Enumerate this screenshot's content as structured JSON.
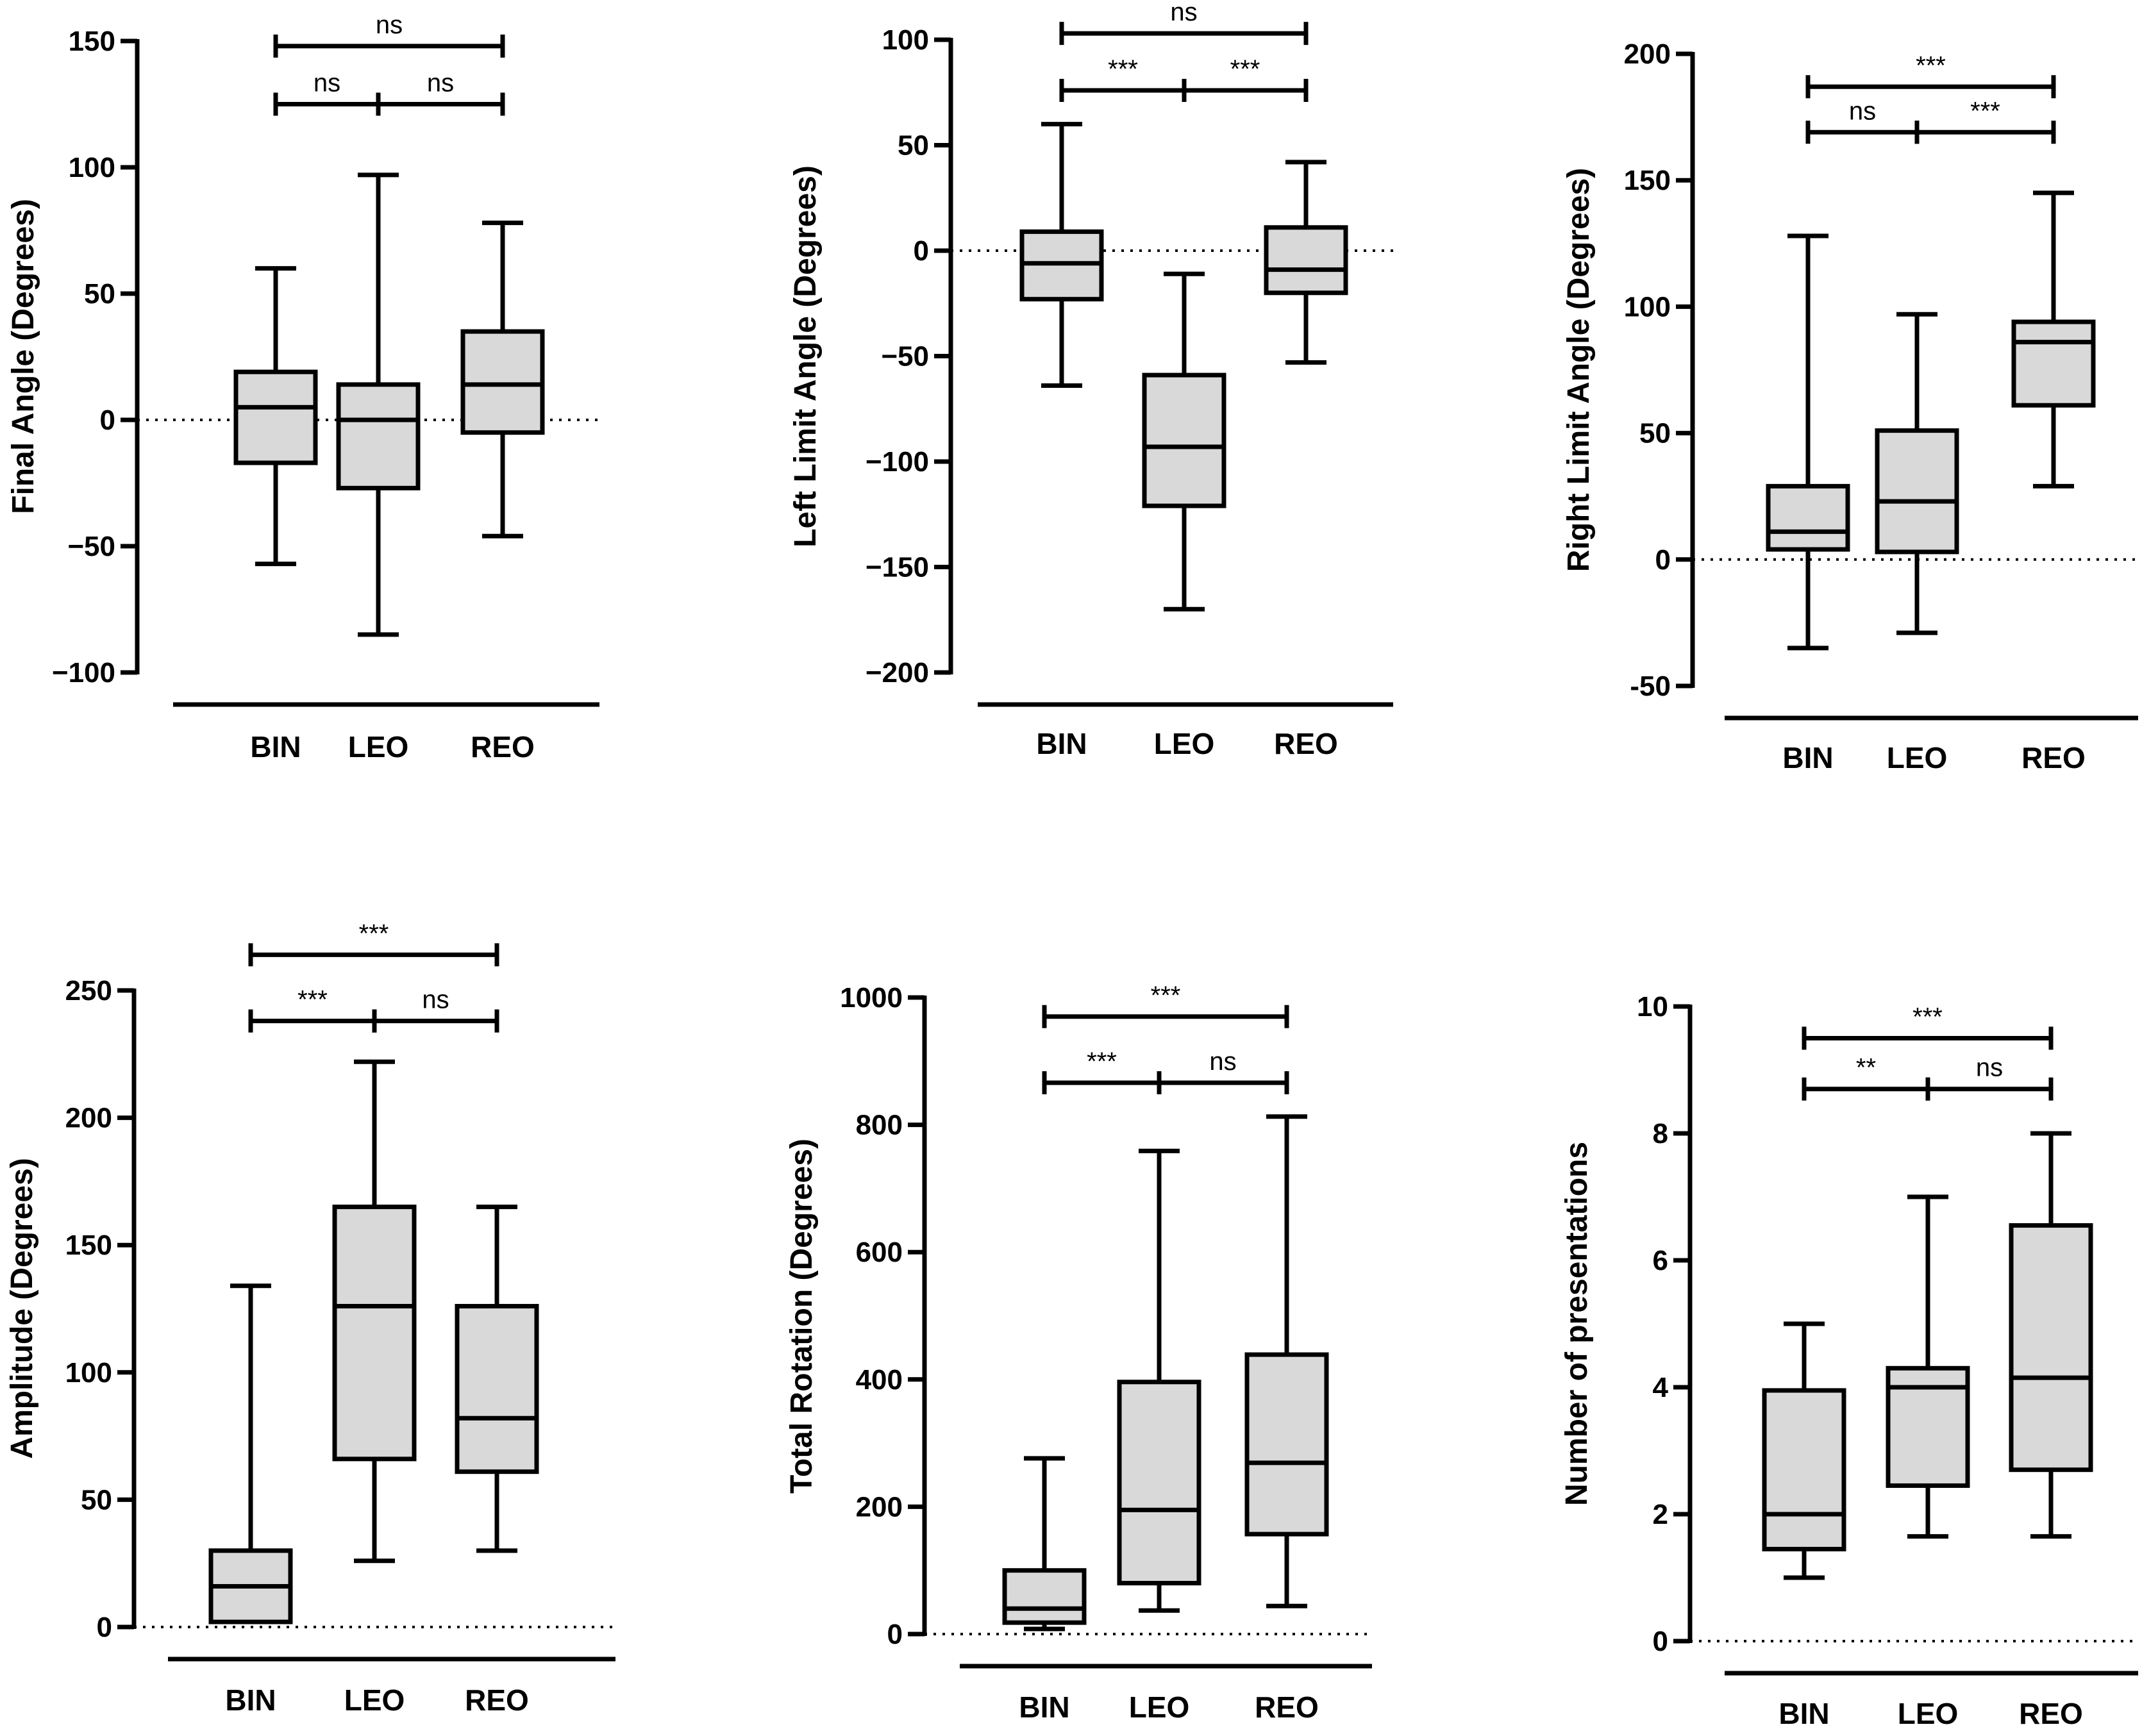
{
  "chart_data": [
    {
      "type": "boxplot",
      "ylabel": "Final Angle (Degrees)",
      "categories": [
        "BIN",
        "LEO",
        "REO"
      ],
      "ylim": [
        -100,
        150
      ],
      "yticks": [
        150,
        100,
        50,
        0,
        -50,
        -100
      ],
      "ytick_labels": [
        "150",
        "100",
        "50",
        "0",
        "−50",
        "−100"
      ],
      "zero_line": true,
      "boxes": [
        {
          "min": -57,
          "q1": -17,
          "median": 5,
          "q3": 19,
          "max": 60
        },
        {
          "min": -85,
          "q1": -27,
          "median": 0,
          "q3": 14,
          "max": 97
        },
        {
          "min": -46,
          "q1": -5,
          "median": 14,
          "q3": 35,
          "max": 78
        }
      ],
      "comparisons": [
        {
          "from": 0,
          "to": 2,
          "label": "ns",
          "y": 148
        },
        {
          "from": 0,
          "to": 1,
          "label": "ns",
          "y": 125
        },
        {
          "from": 1,
          "to": 2,
          "label": "ns",
          "y": 125
        }
      ]
    },
    {
      "type": "boxplot",
      "ylabel": "Left Limit Angle (Degrees)",
      "categories": [
        "BIN",
        "LEO",
        "REO"
      ],
      "ylim": [
        -200,
        100
      ],
      "yticks": [
        100,
        50,
        0,
        -50,
        -100,
        -150,
        -200
      ],
      "ytick_labels": [
        "100",
        "50",
        "0",
        "−50",
        "−100",
        "−150",
        "−200"
      ],
      "zero_line": true,
      "boxes": [
        {
          "min": -64,
          "q1": -23,
          "median": -6,
          "q3": 9,
          "max": 60
        },
        {
          "min": -170,
          "q1": -121,
          "median": -93,
          "q3": -59,
          "max": -11
        },
        {
          "min": -53,
          "q1": -20,
          "median": -9,
          "q3": 11,
          "max": 42
        }
      ],
      "comparisons": [
        {
          "from": 0,
          "to": 2,
          "label": "ns",
          "y": 103
        },
        {
          "from": 0,
          "to": 1,
          "label": "***",
          "y": 76
        },
        {
          "from": 1,
          "to": 2,
          "label": "***",
          "y": 76
        }
      ]
    },
    {
      "type": "boxplot",
      "ylabel": "Right Limit Angle (Degrees)",
      "categories": [
        "BIN",
        "LEO",
        "REO"
      ],
      "ylim": [
        -50,
        200
      ],
      "yticks": [
        200,
        150,
        100,
        50,
        0,
        -50
      ],
      "ytick_labels": [
        "200",
        "150",
        "100",
        "50",
        "0",
        "-50"
      ],
      "zero_line": true,
      "boxes": [
        {
          "min": -35,
          "q1": 4,
          "median": 11,
          "q3": 29,
          "max": 128
        },
        {
          "min": -29,
          "q1": 3,
          "median": 23,
          "q3": 51,
          "max": 97
        },
        {
          "min": 29,
          "q1": 61,
          "median": 86,
          "q3": 94,
          "max": 145
        }
      ],
      "comparisons": [
        {
          "from": 0,
          "to": 2,
          "label": "***",
          "y": 187
        },
        {
          "from": 0,
          "to": 1,
          "label": "ns",
          "y": 169
        },
        {
          "from": 1,
          "to": 2,
          "label": "***",
          "y": 169
        }
      ]
    },
    {
      "type": "boxplot",
      "ylabel": "Amplitude (Degrees)",
      "categories": [
        "BIN",
        "LEO",
        "REO"
      ],
      "ylim": [
        0,
        250
      ],
      "yticks": [
        250,
        200,
        150,
        100,
        50,
        0
      ],
      "ytick_labels": [
        "250",
        "200",
        "150",
        "100",
        "50",
        "0"
      ],
      "zero_line": true,
      "boxes": [
        {
          "min": 2,
          "q1": 2,
          "median": 16,
          "q3": 30,
          "max": 134
        },
        {
          "min": 26,
          "q1": 66,
          "median": 126,
          "q3": 165,
          "max": 222
        },
        {
          "min": 30,
          "q1": 61,
          "median": 82,
          "q3": 126,
          "max": 165
        }
      ],
      "comparisons": [
        {
          "from": 0,
          "to": 2,
          "label": "***",
          "y": 264
        },
        {
          "from": 0,
          "to": 1,
          "label": "***",
          "y": 238
        },
        {
          "from": 1,
          "to": 2,
          "label": "ns",
          "y": 238
        }
      ]
    },
    {
      "type": "boxplot",
      "ylabel": "Total Rotation (Degrees)",
      "categories": [
        "BIN",
        "LEO",
        "REO"
      ],
      "ylim": [
        0,
        1000
      ],
      "yticks": [
        1000,
        800,
        600,
        400,
        200,
        0
      ],
      "ytick_labels": [
        "1000",
        "800",
        "600",
        "400",
        "200",
        "0"
      ],
      "zero_line": true,
      "boxes": [
        {
          "min": 8,
          "q1": 18,
          "median": 40,
          "q3": 100,
          "max": 276
        },
        {
          "min": 37,
          "q1": 80,
          "median": 195,
          "q3": 396,
          "max": 759
        },
        {
          "min": 44,
          "q1": 157,
          "median": 269,
          "q3": 439,
          "max": 813
        }
      ],
      "comparisons": [
        {
          "from": 0,
          "to": 2,
          "label": "***",
          "y": 970
        },
        {
          "from": 0,
          "to": 1,
          "label": "***",
          "y": 866
        },
        {
          "from": 1,
          "to": 2,
          "label": "ns",
          "y": 866
        }
      ]
    },
    {
      "type": "boxplot",
      "ylabel": "Number of presentations",
      "categories": [
        "BIN",
        "LEO",
        "REO"
      ],
      "ylim": [
        0,
        10
      ],
      "yticks": [
        10,
        8,
        6,
        4,
        2,
        0
      ],
      "ytick_labels": [
        "10",
        "8",
        "6",
        "4",
        "2",
        "0"
      ],
      "zero_line": true,
      "boxes": [
        {
          "min": 1,
          "q1": 1.45,
          "median": 2,
          "q3": 3.95,
          "max": 5
        },
        {
          "min": 1.65,
          "q1": 2.45,
          "median": 4,
          "q3": 4.3,
          "max": 7
        },
        {
          "min": 1.65,
          "q1": 2.7,
          "median": 4.15,
          "q3": 6.55,
          "max": 8
        }
      ],
      "comparisons": [
        {
          "from": 0,
          "to": 2,
          "label": "***",
          "y": 9.5
        },
        {
          "from": 0,
          "to": 1,
          "label": "**",
          "y": 8.7
        },
        {
          "from": 1,
          "to": 2,
          "label": "ns",
          "y": 8.7
        }
      ]
    }
  ]
}
